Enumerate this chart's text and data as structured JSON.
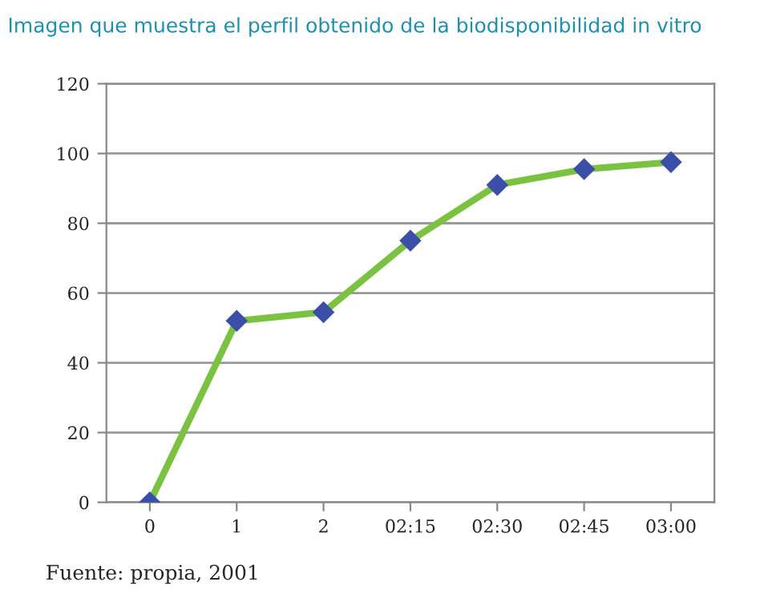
{
  "chart_data": {
    "type": "line",
    "title": "Imagen que muestra el perfil obtenido de la biodisponibilidad in vitro",
    "categories": [
      "0",
      "1",
      "2",
      "02:15",
      "02:30",
      "02:45",
      "03:00"
    ],
    "series": [
      {
        "color": "#7cc242",
        "colors": [
          "#3b4fa8",
          "#3b4fa8",
          "#3b4fa8",
          "#3b4fa8",
          "#3b4fa8",
          "#3b4fa8",
          "#3b4fa8"
        ],
        "values": [
          0,
          52,
          54.5,
          75,
          91,
          95.5,
          97.5
        ]
      }
    ],
    "ylim": [
      0,
      120
    ],
    "yticks": [
      0,
      20,
      40,
      60,
      80,
      100,
      120
    ],
    "grid": "y",
    "marker": "diamond",
    "line_style": "solid",
    "annotations": [
      "Fuente: propia, 2001"
    ]
  }
}
